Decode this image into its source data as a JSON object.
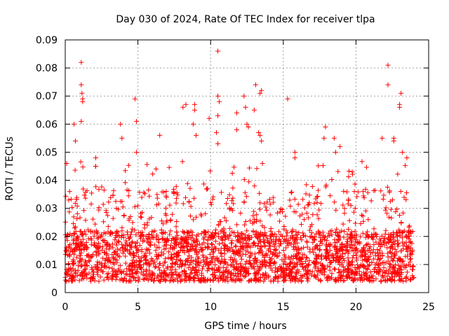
{
  "chart_data": {
    "type": "scatter",
    "title": "Day 030 of 2024, Rate Of TEC Index for receiver tlpa",
    "xlabel": "GPS time / hours",
    "ylabel": "ROTI / TECUs",
    "xlim": [
      0,
      25
    ],
    "ylim": [
      0,
      0.09
    ],
    "x_ticks": [
      0,
      5,
      10,
      15,
      20,
      25
    ],
    "x_tick_labels": [
      "0",
      "5",
      "10",
      "15",
      "20",
      "25"
    ],
    "y_ticks": [
      0,
      0.01,
      0.02,
      0.03,
      0.04,
      0.05,
      0.06,
      0.07,
      0.08,
      0.09
    ],
    "y_tick_labels": [
      "0",
      "0.01",
      "0.02",
      "0.03",
      "0.04",
      "0.05",
      "0.06",
      "0.07",
      "0.08",
      "0.09"
    ],
    "grid": true,
    "marker": "+",
    "color": "#ff0000",
    "data_range_x": [
      0,
      24
    ],
    "series": [
      {
        "name": "ROTI",
        "points": [
          [
            0.1,
            0.046
          ],
          [
            0.3,
            0.036
          ],
          [
            0.6,
            0.06
          ],
          [
            0.7,
            0.054
          ],
          [
            1.1,
            0.082
          ],
          [
            1.1,
            0.074
          ],
          [
            1.15,
            0.071
          ],
          [
            1.2,
            0.069
          ],
          [
            1.2,
            0.068
          ],
          [
            1.1,
            0.061
          ],
          [
            2.1,
            0.048
          ],
          [
            2.1,
            0.045
          ],
          [
            3.8,
            0.06
          ],
          [
            3.9,
            0.055
          ],
          [
            4.8,
            0.069
          ],
          [
            4.9,
            0.061
          ],
          [
            4.9,
            0.05
          ],
          [
            6.5,
            0.056
          ],
          [
            8.1,
            0.066
          ],
          [
            8.3,
            0.067
          ],
          [
            8.9,
            0.067
          ],
          [
            8.9,
            0.065
          ],
          [
            8.8,
            0.06
          ],
          [
            9.0,
            0.056
          ],
          [
            9.9,
            0.062
          ],
          [
            10.5,
            0.086
          ],
          [
            10.5,
            0.07
          ],
          [
            10.6,
            0.068
          ],
          [
            10.5,
            0.063
          ],
          [
            10.4,
            0.057
          ],
          [
            10.5,
            0.053
          ],
          [
            11.8,
            0.064
          ],
          [
            11.8,
            0.058
          ],
          [
            12.3,
            0.07
          ],
          [
            12.4,
            0.066
          ],
          [
            12.5,
            0.06
          ],
          [
            12.6,
            0.059
          ],
          [
            13.1,
            0.074
          ],
          [
            13.0,
            0.065
          ],
          [
            13.5,
            0.072
          ],
          [
            13.4,
            0.071
          ],
          [
            13.3,
            0.057
          ],
          [
            13.4,
            0.056
          ],
          [
            13.5,
            0.054
          ],
          [
            15.3,
            0.069
          ],
          [
            15.8,
            0.05
          ],
          [
            15.8,
            0.048
          ],
          [
            17.9,
            0.059
          ],
          [
            17.8,
            0.055
          ],
          [
            18.5,
            0.055
          ],
          [
            18.6,
            0.05
          ],
          [
            18.9,
            0.052
          ],
          [
            21.8,
            0.055
          ],
          [
            22.2,
            0.081
          ],
          [
            22.2,
            0.074
          ],
          [
            22.6,
            0.055
          ],
          [
            22.6,
            0.054
          ],
          [
            23.1,
            0.071
          ],
          [
            23.0,
            0.067
          ],
          [
            23.0,
            0.066
          ],
          [
            23.2,
            0.05
          ],
          [
            23.5,
            0.048
          ]
        ]
      }
    ]
  }
}
